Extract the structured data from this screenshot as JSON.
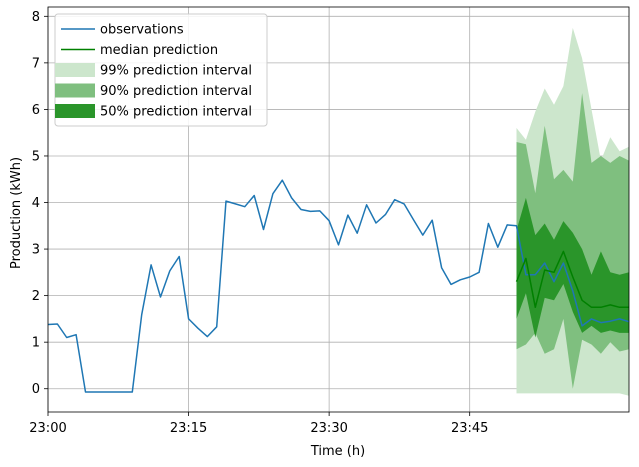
{
  "chart_data": {
    "type": "line",
    "title": "",
    "xlabel": "Time (h)",
    "ylabel": "Production (kWh)",
    "xlim": [
      0,
      62
    ],
    "ylim": [
      -0.5,
      8.2
    ],
    "grid": true,
    "legend_placement": "top-left",
    "x_ticks": [
      {
        "value": 0,
        "label": "23:00"
      },
      {
        "value": 15,
        "label": "23:15"
      },
      {
        "value": 30,
        "label": "23:30"
      },
      {
        "value": 45,
        "label": "23:45"
      }
    ],
    "y_ticks": [
      0,
      1,
      2,
      3,
      4,
      5,
      6,
      7,
      8
    ],
    "colors": {
      "observations": "#1f77b4",
      "median": "#008000",
      "band99": "#cce6cc",
      "band90": "#7fbf7f",
      "band50": "#2a952a"
    },
    "legend": {
      "observations": "observations",
      "median": "median prediction",
      "band99": "99% prediction interval",
      "band90": "90% prediction interval",
      "band50": "50% prediction interval"
    },
    "observations": {
      "x": [
        0,
        1,
        2,
        3,
        4,
        5,
        6,
        7,
        8,
        9,
        10,
        11,
        12,
        13,
        14,
        15,
        16,
        17,
        18,
        19,
        20,
        21,
        22,
        23,
        24,
        25,
        26,
        27,
        28,
        29,
        30,
        31,
        32,
        33,
        34,
        35,
        36,
        37,
        38,
        39,
        40,
        41,
        42,
        43,
        44,
        45,
        46,
        47,
        48,
        49,
        50,
        51,
        52,
        53,
        54,
        55,
        56,
        57,
        58,
        59,
        60,
        61,
        62
      ],
      "y": [
        1.38,
        1.39,
        1.1,
        1.16,
        -0.07,
        -0.07,
        -0.07,
        -0.07,
        -0.07,
        -0.07,
        1.59,
        2.66,
        1.97,
        2.53,
        2.84,
        1.5,
        1.3,
        1.12,
        1.33,
        4.03,
        3.97,
        3.91,
        4.15,
        3.42,
        4.19,
        4.48,
        4.1,
        3.85,
        3.81,
        3.82,
        3.61,
        3.09,
        3.73,
        3.34,
        3.95,
        3.56,
        3.74,
        4.06,
        3.97,
        3.63,
        3.3,
        3.62,
        2.6,
        2.24,
        2.34,
        2.4,
        2.5,
        3.55,
        3.04,
        3.52,
        3.5,
        2.45,
        2.45,
        2.7,
        2.3,
        2.7,
        2.1,
        1.35,
        1.5,
        1.42,
        1.45,
        1.5,
        1.44
      ]
    },
    "median": {
      "x": [
        50,
        51,
        52,
        53,
        54,
        55,
        56,
        57,
        58,
        59,
        60,
        61,
        62
      ],
      "y": [
        2.3,
        2.8,
        1.75,
        2.55,
        2.5,
        2.95,
        2.4,
        1.9,
        1.75,
        1.75,
        1.8,
        1.75,
        1.75
      ]
    },
    "band99": {
      "x": [
        50,
        51,
        52,
        53,
        54,
        55,
        56,
        57,
        58,
        59,
        60,
        61,
        62
      ],
      "lower": [
        -0.1,
        -0.1,
        -0.1,
        -0.1,
        -0.1,
        -0.1,
        -0.1,
        -0.1,
        -0.1,
        -0.1,
        -0.1,
        -0.1,
        -0.15
      ],
      "upper": [
        5.6,
        5.35,
        5.95,
        6.45,
        6.1,
        6.5,
        7.75,
        7.1,
        6.0,
        4.9,
        5.4,
        5.1,
        5.2
      ]
    },
    "band90": {
      "x": [
        50,
        51,
        52,
        53,
        54,
        55,
        56,
        57,
        58,
        59,
        60,
        61,
        62
      ],
      "lower": [
        0.85,
        0.95,
        1.2,
        0.75,
        0.85,
        1.5,
        0.0,
        1.05,
        0.95,
        0.75,
        1.0,
        0.8,
        0.85
      ],
      "upper": [
        5.3,
        5.25,
        4.2,
        5.65,
        4.5,
        4.7,
        4.45,
        6.35,
        4.85,
        5.0,
        4.85,
        5.0,
        4.9
      ]
    },
    "band50": {
      "x": [
        50,
        51,
        52,
        53,
        54,
        55,
        56,
        57,
        58,
        59,
        60,
        61,
        62
      ],
      "lower": [
        1.5,
        2.05,
        1.1,
        1.95,
        1.9,
        2.25,
        1.65,
        1.2,
        1.35,
        1.2,
        1.25,
        1.2,
        1.2
      ],
      "upper": [
        3.4,
        4.1,
        3.3,
        3.55,
        3.2,
        3.6,
        3.35,
        3.0,
        2.45,
        2.95,
        2.5,
        2.45,
        2.5
      ]
    }
  }
}
